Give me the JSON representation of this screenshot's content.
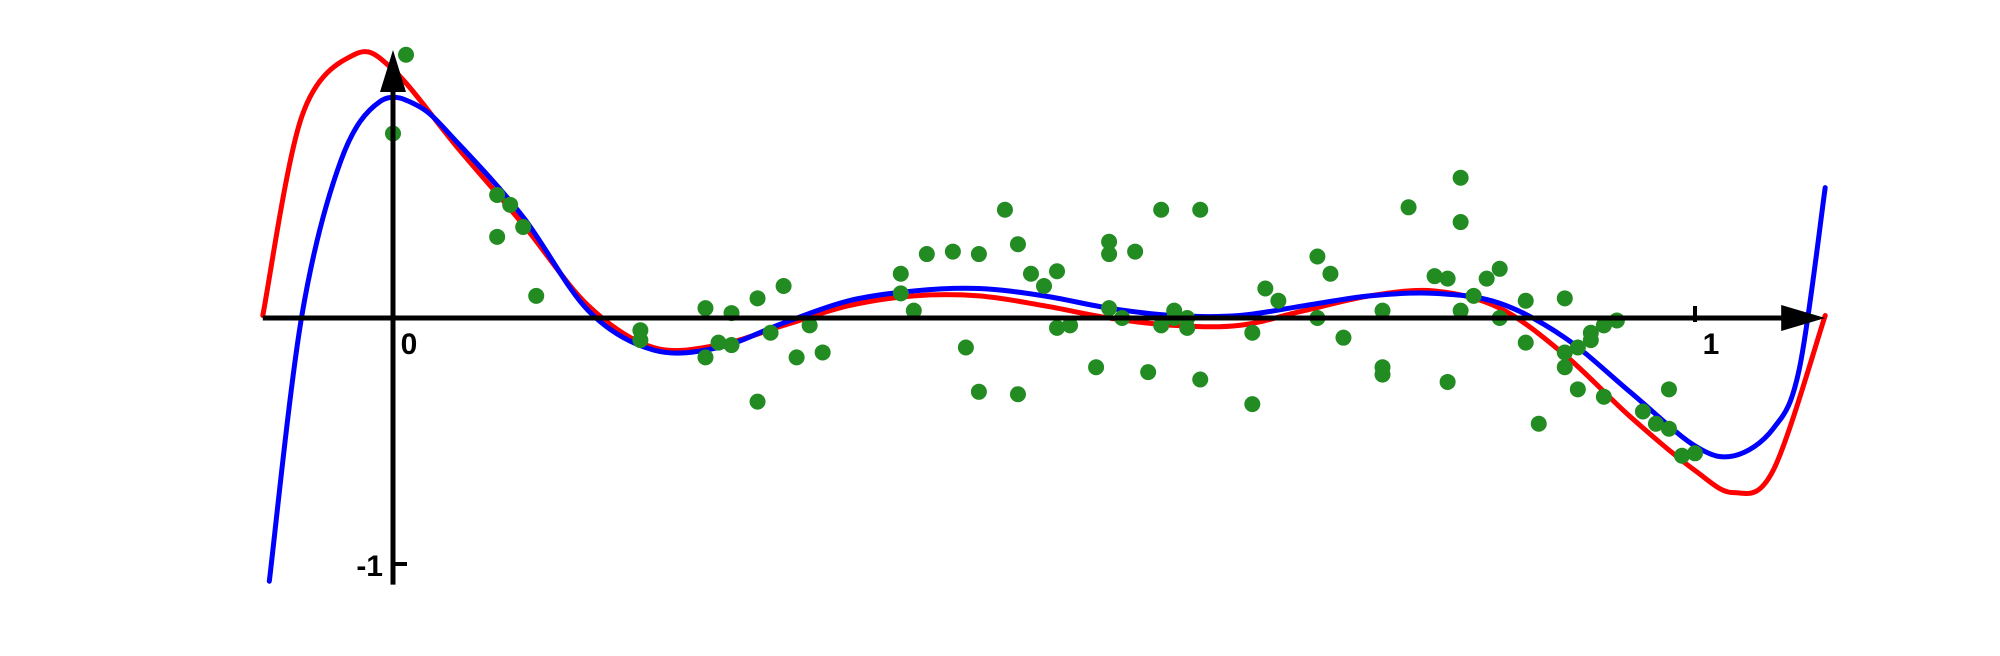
{
  "chart_data": {
    "type": "scatter",
    "title": "",
    "xlabel": "",
    "ylabel": "",
    "xlim": [
      -0.1,
      1.1
    ],
    "ylim": [
      -1.1,
      1.1
    ],
    "grid": false,
    "legend": "none",
    "x_ticks": [
      {
        "value": 0,
        "label": "0"
      },
      {
        "value": 1,
        "label": "1"
      }
    ],
    "y_ticks": [
      {
        "value": -1,
        "label": "-1"
      }
    ],
    "colors": {
      "axis": "#000000",
      "points": "#228B22",
      "curve_red": "#ff0000",
      "curve_blue": "#0000ff"
    },
    "series": [
      {
        "type": "scatter",
        "color": "#228B22",
        "points": [
          [
            0.01,
            1.07
          ],
          [
            0.0,
            0.75
          ],
          [
            0.08,
            0.5
          ],
          [
            0.09,
            0.46
          ],
          [
            0.08,
            0.33
          ],
          [
            0.1,
            0.37
          ],
          [
            0.11,
            0.09
          ],
          [
            0.19,
            -0.05
          ],
          [
            0.19,
            -0.09
          ],
          [
            0.24,
            0.04
          ],
          [
            0.25,
            -0.1
          ],
          [
            0.26,
            0.02
          ],
          [
            0.24,
            -0.16
          ],
          [
            0.26,
            -0.11
          ],
          [
            0.28,
            -0.34
          ],
          [
            0.28,
            0.08
          ],
          [
            0.29,
            -0.06
          ],
          [
            0.3,
            0.13
          ],
          [
            0.31,
            -0.16
          ],
          [
            0.32,
            -0.03
          ],
          [
            0.33,
            -0.14
          ],
          [
            0.39,
            0.18
          ],
          [
            0.39,
            0.1
          ],
          [
            0.4,
            0.03
          ],
          [
            0.41,
            0.26
          ],
          [
            0.43,
            0.27
          ],
          [
            0.44,
            -0.12
          ],
          [
            0.45,
            0.26
          ],
          [
            0.45,
            -0.3
          ],
          [
            0.47,
            0.44
          ],
          [
            0.48,
            0.3
          ],
          [
            0.48,
            -0.31
          ],
          [
            0.49,
            0.18
          ],
          [
            0.5,
            0.13
          ],
          [
            0.51,
            -0.04
          ],
          [
            0.51,
            0.19
          ],
          [
            0.52,
            -0.03
          ],
          [
            0.54,
            -0.2
          ],
          [
            0.55,
            0.31
          ],
          [
            0.55,
            0.26
          ],
          [
            0.55,
            0.04
          ],
          [
            0.56,
            0.0
          ],
          [
            0.57,
            0.27
          ],
          [
            0.58,
            -0.22
          ],
          [
            0.59,
            0.44
          ],
          [
            0.59,
            -0.03
          ],
          [
            0.6,
            0.0
          ],
          [
            0.6,
            0.03
          ],
          [
            0.61,
            -0.04
          ],
          [
            0.61,
            0.0
          ],
          [
            0.62,
            0.44
          ],
          [
            0.62,
            -0.25
          ],
          [
            0.66,
            -0.06
          ],
          [
            0.66,
            -0.35
          ],
          [
            0.67,
            0.12
          ],
          [
            0.68,
            0.07
          ],
          [
            0.71,
            0.25
          ],
          [
            0.71,
            0.0
          ],
          [
            0.72,
            0.18
          ],
          [
            0.73,
            -0.08
          ],
          [
            0.76,
            0.03
          ],
          [
            0.76,
            -0.2
          ],
          [
            0.76,
            -0.23
          ],
          [
            0.78,
            0.45
          ],
          [
            0.8,
            0.17
          ],
          [
            0.81,
            0.16
          ],
          [
            0.81,
            -0.26
          ],
          [
            0.82,
            0.57
          ],
          [
            0.82,
            0.39
          ],
          [
            0.82,
            0.03
          ],
          [
            0.83,
            0.09
          ],
          [
            0.84,
            0.16
          ],
          [
            0.85,
            0.2
          ],
          [
            0.85,
            0.0
          ],
          [
            0.87,
            0.07
          ],
          [
            0.87,
            -0.1
          ],
          [
            0.88,
            -0.43
          ],
          [
            0.9,
            0.08
          ],
          [
            0.9,
            -0.2
          ],
          [
            0.9,
            -0.14
          ],
          [
            0.91,
            -0.12
          ],
          [
            0.91,
            -0.29
          ],
          [
            0.92,
            -0.09
          ],
          [
            0.92,
            -0.06
          ],
          [
            0.93,
            -0.03
          ],
          [
            0.93,
            -0.32
          ],
          [
            0.94,
            -0.01
          ],
          [
            0.96,
            -0.38
          ],
          [
            0.97,
            -0.43
          ],
          [
            0.98,
            -0.29
          ],
          [
            0.98,
            -0.45
          ],
          [
            0.99,
            -0.56
          ],
          [
            1.0,
            -0.55
          ]
        ]
      },
      {
        "type": "line",
        "color": "#ff0000",
        "points": [
          [
            -0.1,
            0.01
          ],
          [
            -0.07,
            0.82
          ],
          [
            -0.03,
            1.07
          ],
          [
            0.0,
            1.01
          ],
          [
            0.05,
            0.69
          ],
          [
            0.1,
            0.38
          ],
          [
            0.15,
            0.05
          ],
          [
            0.2,
            -0.12
          ],
          [
            0.25,
            -0.11
          ],
          [
            0.3,
            -0.03
          ],
          [
            0.35,
            0.05
          ],
          [
            0.4,
            0.09
          ],
          [
            0.45,
            0.09
          ],
          [
            0.5,
            0.05
          ],
          [
            0.55,
            0.0
          ],
          [
            0.6,
            -0.03
          ],
          [
            0.65,
            -0.03
          ],
          [
            0.7,
            0.03
          ],
          [
            0.75,
            0.09
          ],
          [
            0.8,
            0.11
          ],
          [
            0.85,
            0.04
          ],
          [
            0.9,
            -0.15
          ],
          [
            0.95,
            -0.4
          ],
          [
            1.0,
            -0.62
          ],
          [
            1.03,
            -0.71
          ],
          [
            1.06,
            -0.62
          ],
          [
            1.1,
            0.01
          ]
        ]
      },
      {
        "type": "line",
        "color": "#0000ff",
        "points": [
          [
            -0.095,
            -1.07
          ],
          [
            -0.07,
            0.01
          ],
          [
            -0.04,
            0.64
          ],
          [
            -0.01,
            0.88
          ],
          [
            0.02,
            0.86
          ],
          [
            0.05,
            0.71
          ],
          [
            0.1,
            0.41
          ],
          [
            0.15,
            0.03
          ],
          [
            0.2,
            -0.13
          ],
          [
            0.25,
            -0.12
          ],
          [
            0.3,
            -0.02
          ],
          [
            0.35,
            0.07
          ],
          [
            0.4,
            0.11
          ],
          [
            0.45,
            0.12
          ],
          [
            0.5,
            0.09
          ],
          [
            0.55,
            0.04
          ],
          [
            0.6,
            0.01
          ],
          [
            0.65,
            0.01
          ],
          [
            0.7,
            0.05
          ],
          [
            0.75,
            0.09
          ],
          [
            0.8,
            0.1
          ],
          [
            0.85,
            0.06
          ],
          [
            0.9,
            -0.08
          ],
          [
            0.95,
            -0.3
          ],
          [
            1.0,
            -0.52
          ],
          [
            1.03,
            -0.56
          ],
          [
            1.06,
            -0.45
          ],
          [
            1.08,
            -0.21
          ],
          [
            1.1,
            0.53
          ]
        ]
      }
    ]
  }
}
